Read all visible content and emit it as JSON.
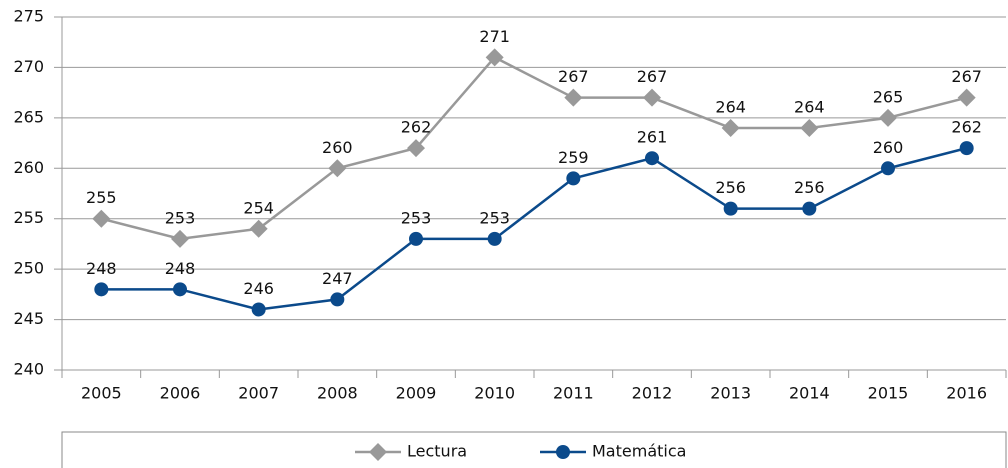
{
  "chart_data": {
    "type": "line",
    "categories": [
      "2005",
      "2006",
      "2007",
      "2008",
      "2009",
      "2010",
      "2011",
      "2012",
      "2013",
      "2014",
      "2015",
      "2016"
    ],
    "series": [
      {
        "name": "Lectura",
        "color": "#999999",
        "marker": "diamond",
        "values": [
          255,
          253,
          254,
          260,
          262,
          271,
          267,
          267,
          264,
          264,
          265,
          267
        ]
      },
      {
        "name": "Matemática",
        "color": "#0b4a8b",
        "marker": "circle",
        "values": [
          248,
          248,
          246,
          247,
          253,
          253,
          259,
          261,
          256,
          256,
          260,
          262
        ]
      }
    ],
    "ylim": [
      240,
      275
    ],
    "yticks": [
      240,
      245,
      250,
      255,
      260,
      265,
      270,
      275
    ],
    "grid": true,
    "legend": "bottom"
  }
}
